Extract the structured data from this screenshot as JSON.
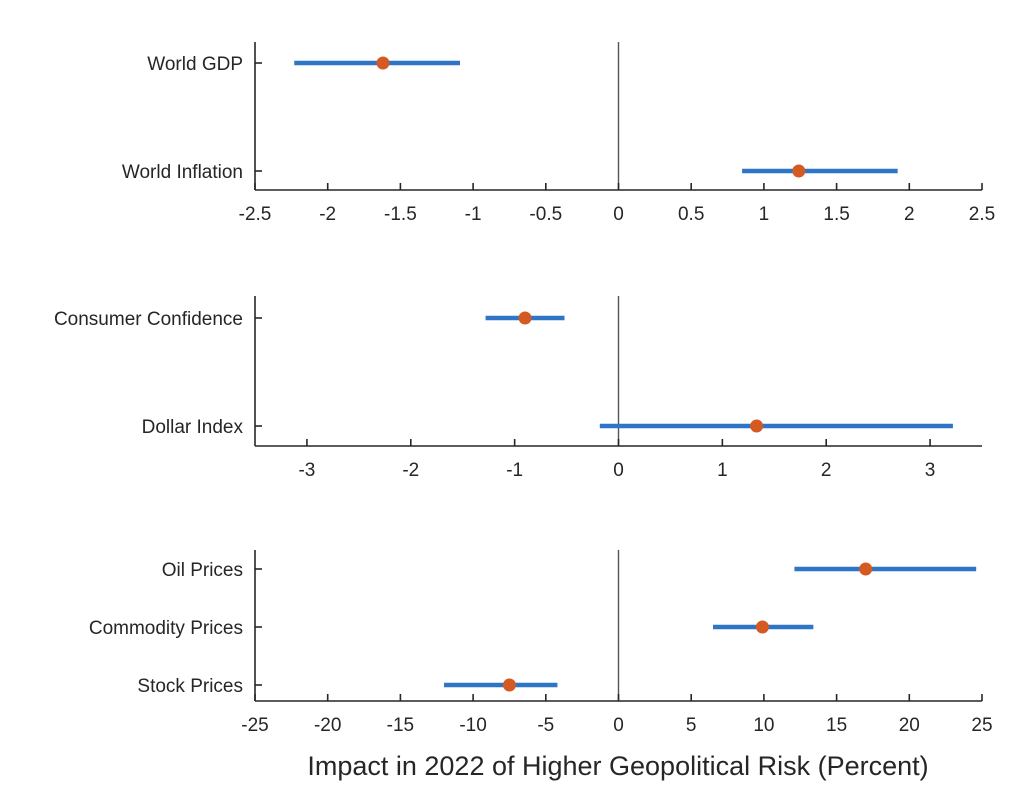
{
  "colors": {
    "interval": "#2e75c6",
    "estimate": "#d45a22",
    "axis": "#262626",
    "zero_line": "#555555"
  },
  "chart_data": [
    {
      "type": "scatter",
      "subtype": "point-estimate-with-interval",
      "categories": [
        "World GDP",
        "World Inflation"
      ],
      "estimates": [
        -1.62,
        1.24
      ],
      "lower": [
        -2.23,
        0.85
      ],
      "upper": [
        -1.09,
        1.92
      ],
      "xlim": [
        -2.5,
        2.5
      ],
      "xticks": [
        -2.5,
        -2,
        -1.5,
        -1,
        -0.5,
        0,
        0.5,
        1,
        1.5,
        2,
        2.5
      ],
      "xtick_labels": [
        "-2.5",
        "-2",
        "-1.5",
        "-1",
        "-0.5",
        "0",
        "0.5",
        "1",
        "1.5",
        "2",
        "2.5"
      ],
      "reference_line": 0,
      "grid": false
    },
    {
      "type": "scatter",
      "subtype": "point-estimate-with-interval",
      "categories": [
        "Consumer Confidence",
        "Dollar Index"
      ],
      "estimates": [
        -0.9,
        1.33
      ],
      "lower": [
        -1.28,
        -0.18
      ],
      "upper": [
        -0.52,
        3.22
      ],
      "xlim": [
        -3.5,
        3.5
      ],
      "xticks": [
        -3,
        -2,
        -1,
        0,
        1,
        2,
        3
      ],
      "xtick_labels": [
        "-3",
        "-2",
        "-1",
        "0",
        "1",
        "2",
        "3"
      ],
      "reference_line": 0,
      "grid": false
    },
    {
      "type": "scatter",
      "subtype": "point-estimate-with-interval",
      "categories": [
        "Oil Prices",
        "Commodity Prices",
        "Stock Prices"
      ],
      "estimates": [
        17.0,
        9.9,
        -7.5
      ],
      "lower": [
        12.1,
        6.5,
        -12.0
      ],
      "upper": [
        24.6,
        13.4,
        -4.2
      ],
      "xlim": [
        -25,
        25
      ],
      "xticks": [
        -25,
        -20,
        -15,
        -10,
        -5,
        0,
        5,
        10,
        15,
        20,
        25
      ],
      "xtick_labels": [
        "-25",
        "-20",
        "-15",
        "-10",
        "-5",
        "0",
        "5",
        "10",
        "15",
        "20",
        "25"
      ],
      "reference_line": 0,
      "grid": false
    }
  ],
  "xlabel": "Impact in 2022 of Higher Geopolitical Risk (Percent)"
}
